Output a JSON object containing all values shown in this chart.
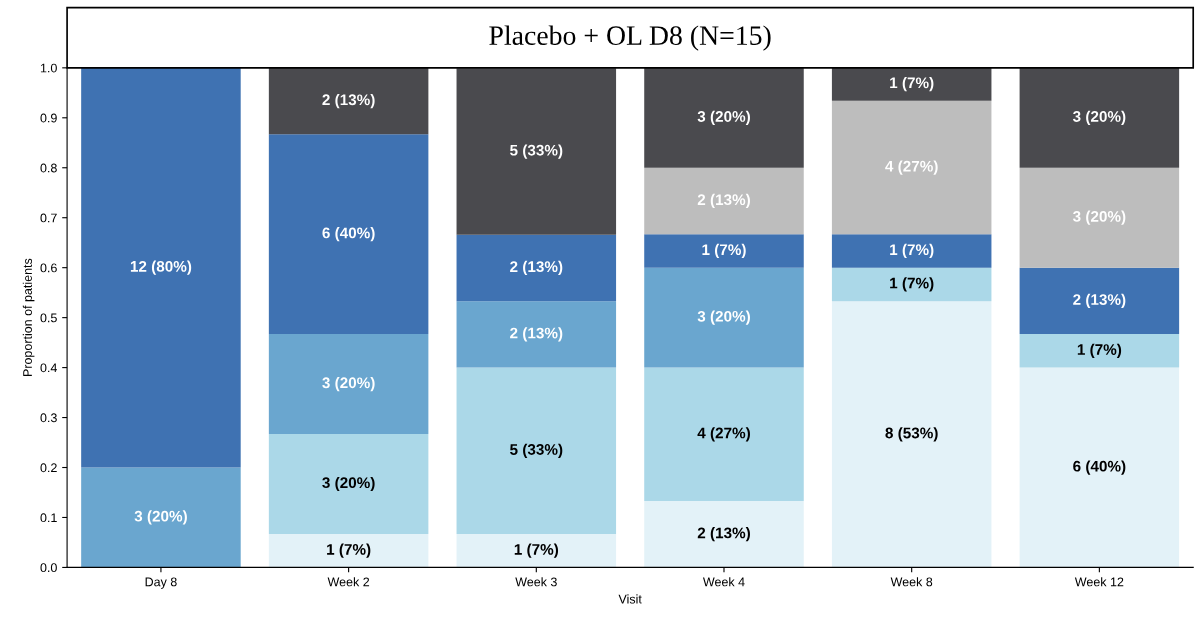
{
  "chart_data": {
    "type": "bar",
    "stacked": true,
    "title": "Placebo + OL D8 (N=15)",
    "xlabel": "Visit",
    "ylabel": "Proportion of patients",
    "categories": [
      "Day 8",
      "Week 2",
      "Week 3",
      "Week 4",
      "Week 8",
      "Week 12"
    ],
    "series": [
      {
        "color": "#e3f2f8",
        "values": [
          null,
          0.067,
          0.067,
          0.133,
          0.533,
          0.4
        ],
        "value_labels": [
          null,
          "1 (7%)",
          "1 (7%)",
          "2 (13%)",
          "8 (53%)",
          "6 (40%)"
        ]
      },
      {
        "color": "#abd8e8",
        "values": [
          null,
          0.2,
          0.333,
          0.267,
          0.067,
          0.067
        ],
        "value_labels": [
          null,
          "3 (20%)",
          "5 (33%)",
          "4 (27%)",
          "1 (7%)",
          "1 (7%)"
        ]
      },
      {
        "color": "#6aa6cf",
        "values": [
          0.2,
          0.2,
          0.133,
          0.2,
          null,
          null
        ],
        "value_labels": [
          "3 (20%)",
          "3 (20%)",
          "2 (13%)",
          "3 (20%)",
          null,
          null
        ]
      },
      {
        "color": "#3f72b2",
        "values": [
          0.8,
          0.4,
          0.133,
          0.067,
          0.067,
          0.133
        ],
        "value_labels": [
          "12 (80%)",
          "6 (40%)",
          "2 (13%)",
          "1 (7%)",
          "1 (7%)",
          "2 (13%)"
        ]
      },
      {
        "color": "#bdbdbd",
        "values": [
          null,
          null,
          null,
          0.133,
          0.267,
          0.2
        ],
        "value_labels": [
          null,
          null,
          null,
          "2 (13%)",
          "4 (27%)",
          "3 (20%)"
        ]
      },
      {
        "color": "#4a4a4e",
        "values": [
          null,
          0.133,
          0.333,
          0.2,
          0.067,
          0.2
        ],
        "value_labels": [
          null,
          "2 (13%)",
          "5 (33%)",
          "3 (20%)",
          "1 (7%)",
          "3 (20%)"
        ]
      }
    ],
    "ylim": [
      0,
      1.0
    ],
    "yticks": [
      {
        "value": 0,
        "label": "0.0"
      },
      0.1,
      0.2,
      0.3,
      0.4,
      0.5,
      0.6,
      0.7,
      0.8,
      0.9,
      {
        "value": 1.0,
        "label": "1.0"
      }
    ],
    "grid": false,
    "legend": false
  }
}
